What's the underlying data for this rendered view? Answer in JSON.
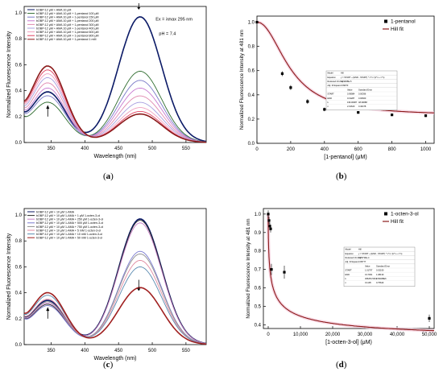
{
  "chart_data": [
    {
      "id": "a",
      "type": "line",
      "panel_label": "a",
      "xlabel": "Wavelength (nm)",
      "ylabel": "Normalized Fluorescence Intensity",
      "xlim": [
        310,
        580
      ],
      "ylim": [
        0.0,
        1.05
      ],
      "x_ticks": [
        350,
        400,
        450,
        500,
        550
      ],
      "y_ticks": [
        0.0,
        0.2,
        0.4,
        0.6,
        0.8,
        1.0
      ],
      "annotation_ex": "Ex = λmax 295 nm",
      "annotation_ph": "pH = 7.4",
      "arrow_up_x": 345,
      "arrow_down_x": 480,
      "legend": [
        "bOBP-12 μM + AMA 10 μM",
        "bOBP-12 μM + AMA 10 μM + 1-pentanol 100 μM",
        "bOBP-12 μM + AMA 10 μM + 1-pentanol 150 μM",
        "bOBP-12 μM + AMA 10 μM + 1-pentanol 200 μM",
        "bOBP-12 μM + AMA 10 μM + 1-pentanol 300 μM",
        "bOBP-12 μM + AMA 10 μM + 1-pentanol 400 μM",
        "bOBP-12 μM + AMA 10 μM + 1-pentanol 600 μM",
        "bOBP-12 μM + AMA 10 μM + 1-pentanol 800 μM",
        "bOBP-12 μM + AMA 10 μM + 1-pentanol 1 mM"
      ],
      "colors": [
        "#0b1a66",
        "#2d6b2d",
        "#7a7ac8",
        "#c87ad0",
        "#e08ab0",
        "#a8a0e0",
        "#f0a0c0",
        "#e04060",
        "#8b1a1a"
      ],
      "series": [
        {
          "peak1": 0.39,
          "peak2": 0.97
        },
        {
          "peak1": 0.31,
          "peak2": 0.55
        },
        {
          "peak1": 0.36,
          "peak2": 0.48
        },
        {
          "peak1": 0.42,
          "peak2": 0.42
        },
        {
          "peak1": 0.46,
          "peak2": 0.36
        },
        {
          "peak1": 0.5,
          "peak2": 0.31
        },
        {
          "peak1": 0.53,
          "peak2": 0.27
        },
        {
          "peak1": 0.56,
          "peak2": 0.24
        },
        {
          "peak1": 0.59,
          "peak2": 0.22
        }
      ]
    },
    {
      "id": "b",
      "type": "scatter",
      "panel_label": "b",
      "xlabel": "[1-pentanol] (μM)",
      "ylabel": "Normalized Fluorescence Intensity at 481 nm",
      "xlim": [
        0,
        1050
      ],
      "ylim": [
        0.0,
        1.05
      ],
      "x_ticks": [
        0,
        200,
        400,
        600,
        800,
        1000
      ],
      "y_ticks": [
        0.0,
        0.2,
        0.4,
        0.6,
        0.8,
        1.0
      ],
      "legend": [
        "1-pentanol",
        "Hill fit"
      ],
      "fit_color": "#8b1a1a",
      "fit": {
        "start": 1.0,
        "end": 0.228,
        "k": 200,
        "n": 2.1
      },
      "points": [
        {
          "x": 0,
          "y": 1.0,
          "err": 0.01
        },
        {
          "x": 150,
          "y": 0.575,
          "err": 0.02
        },
        {
          "x": 200,
          "y": 0.46,
          "err": 0.02
        },
        {
          "x": 300,
          "y": 0.345,
          "err": 0.02
        },
        {
          "x": 400,
          "y": 0.28,
          "err": 0.015
        },
        {
          "x": 600,
          "y": 0.255,
          "err": 0.01
        },
        {
          "x": 800,
          "y": 0.235,
          "err": 0.01
        },
        {
          "x": 1000,
          "y": 0.228,
          "err": 0.01
        }
      ],
      "table": {
        "rows": [
          [
            "Model",
            "Hill"
          ],
          [
            "Equation",
            "y = START + (END - START) * x^n / (k^n + x^n)"
          ],
          [
            "Reduced Chi-Sqr",
            "1.19908E-5"
          ],
          [
            "Adj. R-Square",
            "0.99973"
          ]
        ],
        "param_header": [
          "",
          "Value",
          "Standard Error"
        ],
        "params": [
          [
            "START",
            "0.99984",
            "0.00396"
          ],
          [
            "END",
            "0.19287",
            "0.00660"
          ],
          [
            "k",
            "196.00087",
            "48.39088"
          ],
          [
            "n",
            "2.01620",
            "0.40478"
          ]
        ]
      }
    },
    {
      "id": "c",
      "type": "line",
      "panel_label": "c",
      "xlabel": "Wavelength (nm)",
      "ylabel": "Normalized Fluorescence Intensity",
      "xlim": [
        310,
        580
      ],
      "ylim": [
        0.0,
        1.05
      ],
      "x_ticks": [
        350,
        400,
        450,
        500,
        550
      ],
      "y_ticks": [
        0.0,
        0.2,
        0.4,
        0.6,
        0.8,
        1.0
      ],
      "arrow_up_x": 345,
      "arrow_down_x": 480,
      "legend": [
        "bOBP-12 μM + 10 μM 1-AMA",
        "bOBP-12 μM + 10 μM 1-AMA + 1 μM 1-octen-3-ol",
        "bOBP-12 μM + 10 μM 1-AMA + 250 μM 1-octen-3-ol",
        "bOBP-12 μM + 10 μM 1-AMA + 500 μM 1-octen-3-ol",
        "bOBP-12 μM + 10 μM 1-AMA + 750 μM 1-octen-3-ol",
        "bOBP-12 μM + 10 μM 1-AMA + 5 mM 1-octen-3-ol",
        "bOBP-12 μM + 10 μM 1-AMA + 10 mM 1-octen-3-ol",
        "bOBP-12 μM + 10 μM 1-AMA + 50 mM 1-octen-3-ol"
      ],
      "colors": [
        "#0b1a66",
        "#2a2a2a",
        "#c880c8",
        "#7a7ad0",
        "#909090",
        "#e08aa0",
        "#5a8ab0",
        "#a02020"
      ],
      "series": [
        {
          "peak1": 0.34,
          "peak2": 0.97
        },
        {
          "peak1": 0.31,
          "peak2": 0.96
        },
        {
          "peak1": 0.32,
          "peak2": 0.94
        },
        {
          "peak1": 0.3,
          "peak2": 0.72
        },
        {
          "peak1": 0.33,
          "peak2": 0.7
        },
        {
          "peak1": 0.35,
          "peak2": 0.65
        },
        {
          "peak1": 0.38,
          "peak2": 0.6
        },
        {
          "peak1": 0.4,
          "peak2": 0.44
        }
      ]
    },
    {
      "id": "d",
      "type": "scatter",
      "panel_label": "d",
      "xlabel": "[1-octen-3-ol] (μM)",
      "ylabel": "Normalized Fluorescence Intensity at 481 nm",
      "xlim": [
        -1500,
        51500
      ],
      "ylim": [
        0.38,
        1.03
      ],
      "x_ticks": [
        0,
        10000,
        20000,
        30000,
        40000,
        50000
      ],
      "x_tick_labels": [
        "0",
        "10,000",
        "20,000",
        "30,000",
        "40,000",
        "50,000"
      ],
      "y_ticks": [
        0.4,
        0.5,
        0.6,
        0.7,
        0.8,
        0.9,
        1.0
      ],
      "legend": [
        "1-octen-3-ol",
        "Hill fit"
      ],
      "fit_color": "#8b1a1a",
      "fit": {
        "start": 1.0,
        "end": 0.3,
        "k": 900,
        "n": 0.55
      },
      "points": [
        {
          "x": 0,
          "y": 1.0,
          "err": 0.02
        },
        {
          "x": 250,
          "y": 0.965,
          "err": 0.02
        },
        {
          "x": 500,
          "y": 0.935,
          "err": 0.02
        },
        {
          "x": 750,
          "y": 0.92,
          "err": 0.02
        },
        {
          "x": 1000,
          "y": 0.7,
          "err": 0.03
        },
        {
          "x": 5000,
          "y": 0.685,
          "err": 0.035
        },
        {
          "x": 50000,
          "y": 0.435,
          "err": 0.02
        }
      ],
      "table": {
        "rows": [
          [
            "Model",
            "Hill"
          ],
          [
            "Equation",
            "y = START + (END - START) * x^n / (k^n + x^n)"
          ],
          [
            "Reduced Chi-Sqr",
            "3.29734E-4"
          ],
          [
            "Adj. R-Square",
            "0.95777"
          ]
        ],
        "param_header": [
          "",
          "Value",
          "Standard Error"
        ],
        "params": [
          [
            "START",
            "1.01797",
            "0.02190"
          ],
          [
            "END",
            "0.17061",
            "1.08130"
          ],
          [
            "k",
            "366254.5461",
            "3.83468E6"
          ],
          [
            "n",
            "0.1105",
            "0.75643"
          ]
        ]
      }
    }
  ]
}
